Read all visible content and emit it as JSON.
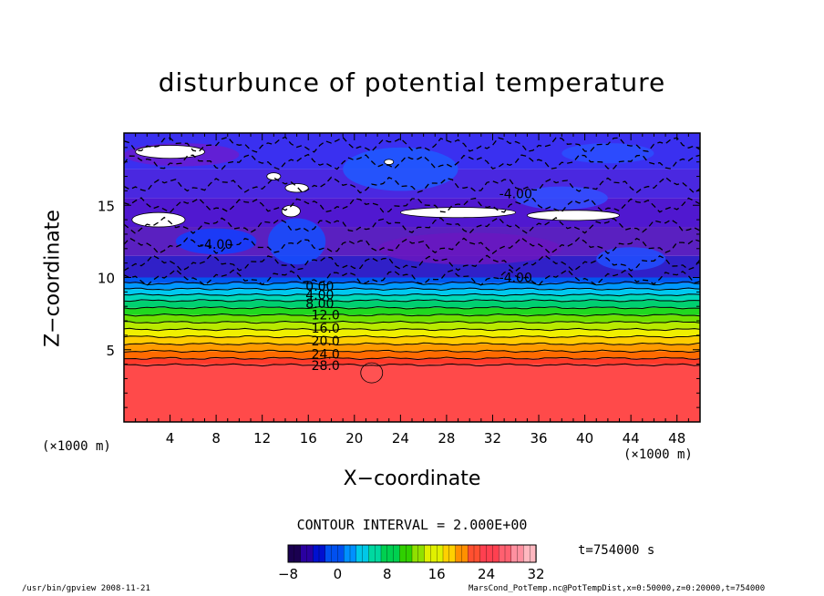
{
  "chart_data": {
    "type": "heatmap",
    "title": "disturbunce of potential temperature",
    "xlabel": "X−coordinate",
    "ylabel": "Z−coordinate",
    "x_unit": "(×1000 m)",
    "z_unit": "(×1000 m)",
    "xlim": [
      0,
      50
    ],
    "ylim": [
      0,
      20
    ],
    "x_ticks": [
      4,
      8,
      12,
      16,
      20,
      24,
      28,
      32,
      36,
      40,
      44,
      48
    ],
    "y_ticks": [
      5,
      10,
      15
    ],
    "contour_interval_text": "CONTOUR INTERVAL = 2.000E+00",
    "contour_labels": [
      {
        "text": "28.0",
        "x": 17.5,
        "z": 3.9
      },
      {
        "text": "24.0",
        "x": 17.5,
        "z": 4.7
      },
      {
        "text": "20.0",
        "x": 17.5,
        "z": 5.6
      },
      {
        "text": "16.0",
        "x": 17.5,
        "z": 6.5
      },
      {
        "text": "12.0",
        "x": 17.5,
        "z": 7.4
      },
      {
        "text": "8.00",
        "x": 17.0,
        "z": 8.2
      },
      {
        "text": "4.00",
        "x": 17.0,
        "z": 8.8
      },
      {
        "text": "0.00",
        "x": 17.0,
        "z": 9.4
      },
      {
        "text": "-4.00",
        "x": 34.0,
        "z": 10.0
      },
      {
        "text": "-4.00",
        "x": 34.0,
        "z": 15.8
      },
      {
        "text": "-4.00",
        "x": 8.0,
        "z": 12.3
      }
    ],
    "colorbar": {
      "min": -8,
      "max": 32,
      "ticks": [
        -8,
        0,
        8,
        16,
        24,
        32
      ],
      "colors": [
        "#1a0050",
        "#2a00a0",
        "#0010d0",
        "#0050f0",
        "#0090ff",
        "#00c8e8",
        "#00d8a0",
        "#00d050",
        "#30d000",
        "#90e000",
        "#e0f000",
        "#ffd000",
        "#ff9000",
        "#ff5030",
        "#ff4050",
        "#ff6070",
        "#ff90a0",
        "#ffb8c0"
      ]
    }
  },
  "time_label": "t=754000 s",
  "footer": {
    "left": "/usr/bin/gpview   2008-11-21",
    "right": "MarsCond_PotTemp.nc@PotTempDist,x=0:50000,z=0:20000,t=754000"
  }
}
